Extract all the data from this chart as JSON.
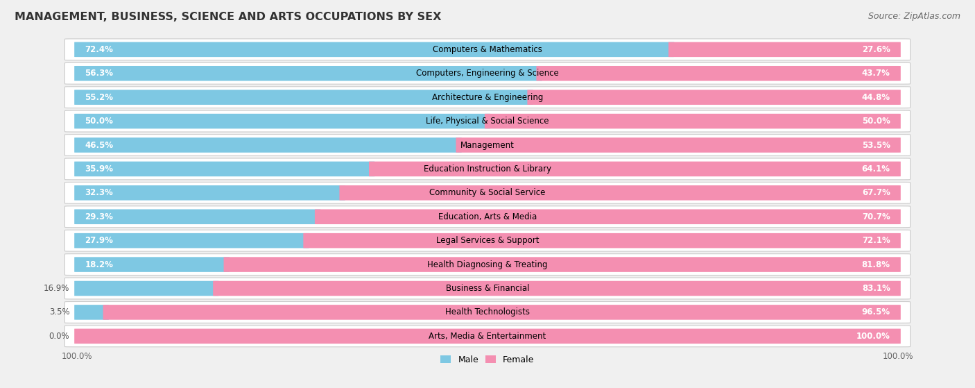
{
  "title": "MANAGEMENT, BUSINESS, SCIENCE AND ARTS OCCUPATIONS BY SEX",
  "source": "Source: ZipAtlas.com",
  "categories": [
    "Computers & Mathematics",
    "Computers, Engineering & Science",
    "Architecture & Engineering",
    "Life, Physical & Social Science",
    "Management",
    "Education Instruction & Library",
    "Community & Social Service",
    "Education, Arts & Media",
    "Legal Services & Support",
    "Health Diagnosing & Treating",
    "Business & Financial",
    "Health Technologists",
    "Arts, Media & Entertainment"
  ],
  "male_pct": [
    72.4,
    56.3,
    55.2,
    50.0,
    46.5,
    35.9,
    32.3,
    29.3,
    27.9,
    18.2,
    16.9,
    3.5,
    0.0
  ],
  "female_pct": [
    27.6,
    43.7,
    44.8,
    50.0,
    53.5,
    64.1,
    67.7,
    70.7,
    72.1,
    81.8,
    83.1,
    96.5,
    100.0
  ],
  "male_color": "#7ec8e3",
  "female_color": "#f48fb1",
  "bg_color": "#f0f0f0",
  "row_bg_color": "#ffffff",
  "row_border_color": "#cccccc",
  "title_fontsize": 11.5,
  "source_fontsize": 9,
  "pct_label_fontsize": 8.5,
  "category_fontsize": 8.5,
  "legend_fontsize": 9,
  "axis_label_fontsize": 8.5,
  "male_pct_color": "#555555",
  "female_pct_color": "#555555",
  "male_pct_inside_color": "#ffffff",
  "female_pct_inside_color": "#ffffff"
}
